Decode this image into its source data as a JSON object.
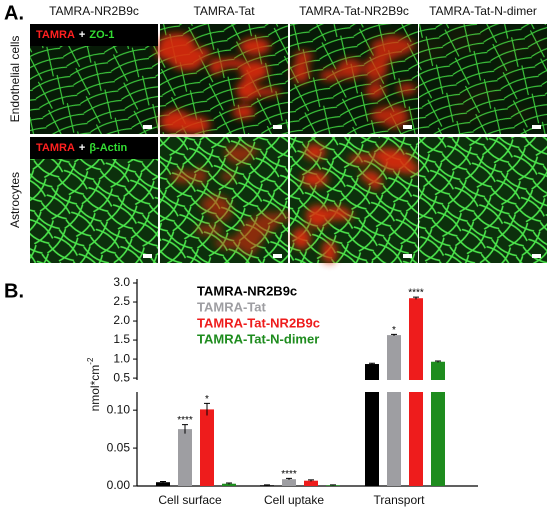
{
  "panel_a": {
    "label": "A.",
    "columns": [
      "TAMRA-NR2B9c",
      "TAMRA-Tat",
      "TAMRA-Tat-NR2B9c",
      "TAMRA-Tat-N-dimer"
    ],
    "rows": [
      {
        "label": "Endothelial  cells",
        "stain": [
          "TAMRA",
          "+",
          "ZO-1"
        ]
      },
      {
        "label": "Astrocytes",
        "stain": [
          "TAMRA",
          "+",
          "β-Actin"
        ]
      }
    ]
  },
  "chart_data": {
    "type": "bar",
    "label": "B.",
    "y_label": "nmol*cm",
    "y_label_sup": "-2",
    "categories": [
      "Cell surface",
      "Cell uptake",
      "Transport"
    ],
    "series": [
      {
        "name": "TAMRA-NR2B9c",
        "color": "#000000",
        "values": [
          0.005,
          0.001,
          0.87
        ],
        "errors": [
          0.001,
          0.0005,
          0.02
        ],
        "significance": [
          null,
          null,
          null
        ]
      },
      {
        "name": "TAMRA-Tat",
        "color": "#9e9ea2",
        "values": [
          0.075,
          0.009,
          1.63
        ],
        "errors": [
          0.006,
          0.001,
          0.02
        ],
        "significance": [
          "****",
          "****",
          "*"
        ]
      },
      {
        "name": "TAMRA-Tat-NR2B9c",
        "color": "#ee1c1c",
        "values": [
          0.101,
          0.007,
          2.6
        ],
        "errors": [
          0.008,
          0.001,
          0.03
        ],
        "significance": [
          "*",
          null,
          "****"
        ]
      },
      {
        "name": "TAMRA-Tat-N-dimer",
        "color": "#1e8c1e",
        "values": [
          0.003,
          0.001,
          0.93
        ],
        "errors": [
          0.001,
          0.0005,
          0.02
        ],
        "significance": [
          null,
          null,
          null
        ]
      }
    ],
    "ylim_lower": [
      0,
      0.12
    ],
    "ylim_upper": [
      0.45,
      3.0
    ],
    "yticks_lower": [
      {
        "value": 0,
        "label": "0.00"
      },
      {
        "value": 0.05,
        "label": "0.05"
      },
      {
        "value": 0.1,
        "label": "0.10"
      }
    ],
    "yticks_upper": [
      0.5,
      {
        "value": 1,
        "label": "1.0"
      },
      1.5,
      {
        "value": 2,
        "label": "2.0"
      },
      2.5,
      {
        "value": 3,
        "label": "3.0"
      }
    ]
  }
}
